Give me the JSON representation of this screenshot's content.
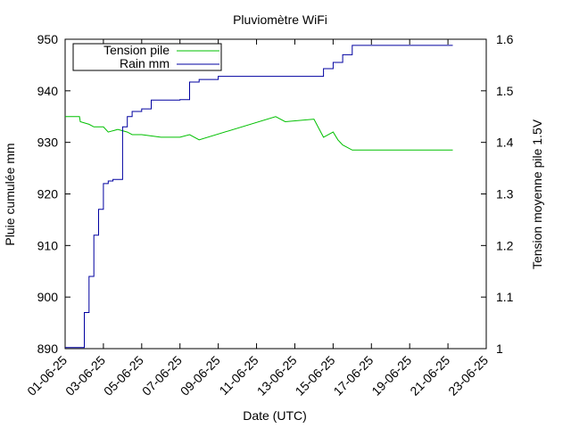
{
  "chart_data": {
    "type": "line",
    "title": "Pluviomètre WiFi",
    "xlabel": "Date (UTC)",
    "ylabel": "Pluie cumulée mm",
    "y2label": "Tension moyenne pile 1.5V",
    "x_ticks": [
      "01-06-25",
      "03-06-25",
      "05-06-25",
      "07-06-25",
      "09-06-25",
      "11-06-25",
      "13-06-25",
      "15-06-25",
      "17-06-25",
      "19-06-25",
      "21-06-25",
      "23-06-25"
    ],
    "ylim": [
      890,
      950
    ],
    "y_ticks": [
      "890",
      "900",
      "910",
      "920",
      "930",
      "940",
      "950"
    ],
    "y2lim": [
      1.0,
      1.6
    ],
    "y2_ticks": [
      "1",
      "1.1",
      "1.2",
      "1.3",
      "1.4",
      "1.5",
      "1.6"
    ],
    "legend_position": "top-left",
    "series": [
      {
        "name": "Tension pile",
        "axis": "y2",
        "color": "#00c000",
        "x": [
          "2025-06-01 00:00",
          "2025-06-01 18:00",
          "2025-06-01 19:00",
          "2025-06-02 06:00",
          "2025-06-02 12:00",
          "2025-06-03 00:00",
          "2025-06-03 06:00",
          "2025-06-03 18:00",
          "2025-06-04 06:00",
          "2025-06-04 12:00",
          "2025-06-05 00:00",
          "2025-06-06 00:00",
          "2025-06-07 00:00",
          "2025-06-07 12:00",
          "2025-06-08 00:00",
          "2025-06-12 00:00",
          "2025-06-12 12:00",
          "2025-06-14 00:00",
          "2025-06-14 12:00",
          "2025-06-15 00:00",
          "2025-06-15 06:00",
          "2025-06-15 12:00",
          "2025-06-16 00:00",
          "2025-06-21 06:00"
        ],
        "values": [
          1.45,
          1.45,
          1.44,
          1.435,
          1.43,
          1.43,
          1.42,
          1.425,
          1.42,
          1.415,
          1.415,
          1.41,
          1.41,
          1.415,
          1.405,
          1.45,
          1.44,
          1.445,
          1.41,
          1.42,
          1.405,
          1.395,
          1.385,
          1.385
        ]
      },
      {
        "name": "Rain mm",
        "axis": "y",
        "color": "#0000a0",
        "x": [
          "2025-06-01 00:00",
          "2025-06-01 19:00",
          "2025-06-02 00:00",
          "2025-06-02 06:00",
          "2025-06-02 12:00",
          "2025-06-02 18:00",
          "2025-06-03 00:00",
          "2025-06-03 06:00",
          "2025-06-03 12:00",
          "2025-06-04 00:00",
          "2025-06-04 06:00",
          "2025-06-04 12:00",
          "2025-06-05 00:00",
          "2025-06-05 12:00",
          "2025-06-07 00:00",
          "2025-06-07 12:00",
          "2025-06-08 00:00",
          "2025-06-09 00:00",
          "2025-06-10 00:00",
          "2025-06-14 12:00",
          "2025-06-15 00:00",
          "2025-06-15 12:00",
          "2025-06-16 00:00",
          "2025-06-21 06:00"
        ],
        "values": [
          890.2,
          890.2,
          897,
          904,
          912,
          917,
          922,
          922.5,
          922.8,
          933,
          935,
          936,
          936.5,
          938.2,
          938.3,
          941.7,
          942.2,
          942.8,
          942.8,
          944.3,
          945.5,
          947,
          948.8,
          948.8
        ]
      }
    ]
  }
}
